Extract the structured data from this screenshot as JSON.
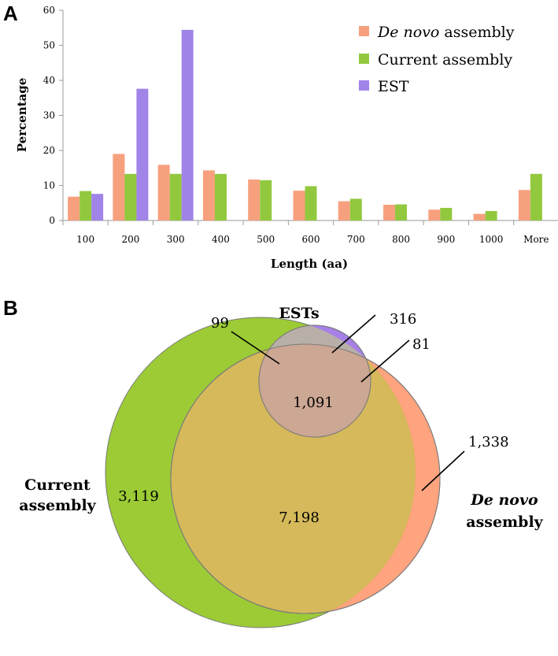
{
  "panels": {
    "a": "A",
    "b": "B"
  },
  "colors": {
    "denovo": "#F7A07E",
    "current": "#92C83E",
    "est": "#A184E8"
  },
  "legend": [
    {
      "label_italic": "De novo",
      "label_rest": " assembly",
      "color": "#F7A07E"
    },
    {
      "label_italic": "",
      "label_rest": "Current assembly",
      "color": "#92C83E"
    },
    {
      "label_italic": "",
      "label_rest": "EST",
      "color": "#A184E8"
    }
  ],
  "chart_data": {
    "type": "bar",
    "xlabel": "Length (aa)",
    "ylabel": "Percentage",
    "ylim": [
      0,
      60
    ],
    "yticks": [
      0,
      10,
      20,
      30,
      40,
      50,
      60
    ],
    "categories": [
      "100",
      "200",
      "300",
      "400",
      "500",
      "600",
      "700",
      "800",
      "900",
      "1000",
      "More"
    ],
    "series": [
      {
        "name": "De novo assembly",
        "color": "#F7A07E",
        "values": [
          6.8,
          19.0,
          15.9,
          14.3,
          11.7,
          8.5,
          5.5,
          4.5,
          3.1,
          1.9,
          8.7
        ]
      },
      {
        "name": "Current assembly",
        "color": "#92C83E",
        "values": [
          8.4,
          13.3,
          13.3,
          13.3,
          11.5,
          9.8,
          6.2,
          4.6,
          3.6,
          2.7,
          13.3
        ]
      },
      {
        "name": "EST",
        "color": "#A184E8",
        "values": [
          7.6,
          37.6,
          54.4,
          null,
          null,
          null,
          null,
          null,
          null,
          null,
          null
        ]
      }
    ],
    "legend_position": "top-right",
    "grid": false
  },
  "venn": {
    "labels": {
      "ests": "ESTs",
      "current_line1": "Current",
      "current_line2": "assembly",
      "denovo_line1_italic": "De novo",
      "denovo_line2": "assembly"
    },
    "counts": {
      "current_only": "3,119",
      "current_denovo": "7,198",
      "all_three": "1,091",
      "denovo_only": "1,338",
      "est_only": "316",
      "current_est": "99",
      "denovo_est": "81"
    }
  }
}
